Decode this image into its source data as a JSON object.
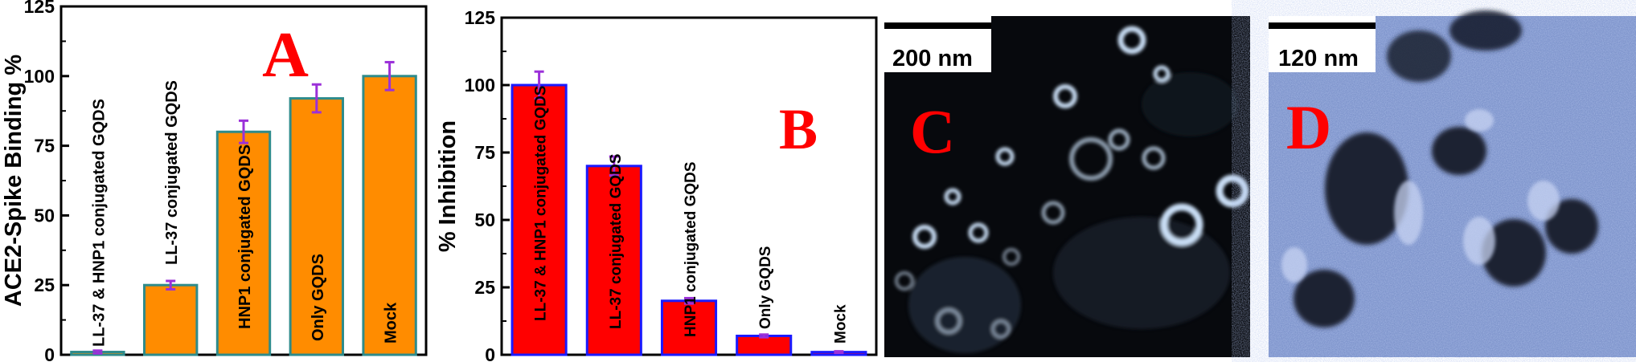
{
  "panel_letters": {
    "a": "A",
    "b": "B",
    "c": "C",
    "d": "D"
  },
  "scale_bars": {
    "c": "200 nm",
    "d": "120 nm"
  },
  "colors": {
    "bar_a": "#ff8c00",
    "bar_a_edge": "#2e8b8b",
    "bar_b": "#ff0000",
    "bar_b_edge": "#1a1aff",
    "error_bar": "#9b30d9",
    "letter": "#ff0000"
  },
  "chart_data": [
    {
      "type": "bar",
      "ylabel": "ACE2-Spike Binding %",
      "ylim": [
        0,
        125
      ],
      "yticks": [
        0,
        25,
        50,
        75,
        100,
        125
      ],
      "categories": [
        "LL-37 & HNP1 conjugated GQDS",
        "LL-37  conjugated GQDS",
        "HNP1 conjugated GQDS",
        "Only GQDS",
        "Mock"
      ],
      "values": [
        1,
        25,
        80,
        92,
        100
      ],
      "errors": [
        0.5,
        1.5,
        4,
        5,
        5
      ]
    },
    {
      "type": "bar",
      "ylabel": "% Inhibition",
      "ylim": [
        0,
        125
      ],
      "yticks": [
        0,
        25,
        50,
        75,
        100,
        125
      ],
      "categories": [
        "LL-37 & HNP1 conjugated GQDS",
        "LL-37  conjugated GQDS",
        "HNP1 conjugated GQDS",
        "Only GQDS",
        "Mock"
      ],
      "values": [
        100,
        70,
        20,
        7,
        1
      ],
      "errors": [
        5,
        3.5,
        1,
        0.5,
        0.3
      ]
    }
  ]
}
